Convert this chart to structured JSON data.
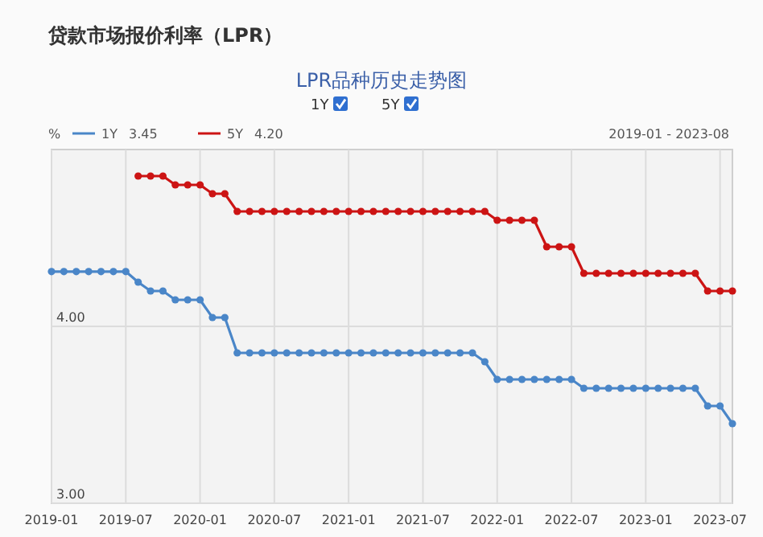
{
  "chart_data": {
    "type": "line",
    "title": "贷款市场报价利率（LPR）",
    "subtitle": "LPR品种历史走势图",
    "ylabel": "%",
    "annotations": [
      "3.45",
      "4.20",
      "2019-01 - 2023-08"
    ],
    "x": [
      "2019-01",
      "2019-02",
      "2019-03",
      "2019-04",
      "2019-05",
      "2019-06",
      "2019-07",
      "2019-08",
      "2019-09",
      "2019-10",
      "2019-11",
      "2019-12",
      "2020-01",
      "2020-02",
      "2020-03",
      "2020-04",
      "2020-05",
      "2020-06",
      "2020-07",
      "2020-08",
      "2020-09",
      "2020-10",
      "2020-11",
      "2020-12",
      "2021-01",
      "2021-02",
      "2021-03",
      "2021-04",
      "2021-05",
      "2021-06",
      "2021-07",
      "2021-08",
      "2021-09",
      "2021-10",
      "2021-11",
      "2021-12",
      "2022-01",
      "2022-02",
      "2022-03",
      "2022-04",
      "2022-05",
      "2022-06",
      "2022-07",
      "2022-08",
      "2022-09",
      "2022-10",
      "2022-11",
      "2022-12",
      "2023-01",
      "2023-02",
      "2023-03",
      "2023-04",
      "2023-05",
      "2023-06",
      "2023-07",
      "2023-08"
    ],
    "series": [
      {
        "name": "1Y",
        "color": "#4a86c8",
        "values": [
          4.31,
          4.31,
          4.31,
          4.31,
          4.31,
          4.31,
          4.31,
          4.25,
          4.2,
          4.2,
          4.15,
          4.15,
          4.15,
          4.05,
          4.05,
          3.85,
          3.85,
          3.85,
          3.85,
          3.85,
          3.85,
          3.85,
          3.85,
          3.85,
          3.85,
          3.85,
          3.85,
          3.85,
          3.85,
          3.85,
          3.85,
          3.85,
          3.85,
          3.85,
          3.85,
          3.8,
          3.7,
          3.7,
          3.7,
          3.7,
          3.7,
          3.7,
          3.7,
          3.65,
          3.65,
          3.65,
          3.65,
          3.65,
          3.65,
          3.65,
          3.65,
          3.65,
          3.65,
          3.55,
          3.55,
          3.45
        ]
      },
      {
        "name": "5Y",
        "color": "#cc1414",
        "values": [
          null,
          null,
          null,
          null,
          null,
          null,
          null,
          4.85,
          4.85,
          4.85,
          4.8,
          4.8,
          4.8,
          4.75,
          4.75,
          4.65,
          4.65,
          4.65,
          4.65,
          4.65,
          4.65,
          4.65,
          4.65,
          4.65,
          4.65,
          4.65,
          4.65,
          4.65,
          4.65,
          4.65,
          4.65,
          4.65,
          4.65,
          4.65,
          4.65,
          4.65,
          4.6,
          4.6,
          4.6,
          4.6,
          4.45,
          4.45,
          4.45,
          4.3,
          4.3,
          4.3,
          4.3,
          4.3,
          4.3,
          4.3,
          4.3,
          4.3,
          4.3,
          4.2,
          4.2,
          4.2
        ]
      }
    ],
    "xlim": [
      "2019-01",
      "2023-08"
    ],
    "xticks": [
      "2019-01",
      "2019-07",
      "2020-01",
      "2020-07",
      "2021-01",
      "2021-07",
      "2022-01",
      "2022-07",
      "2023-01",
      "2023-07"
    ],
    "ylim": [
      3,
      5
    ],
    "yticks": [
      {
        "value": 3,
        "label": "3.00"
      },
      {
        "value": 4,
        "label": "4.00"
      }
    ],
    "grid": true,
    "legend": "top left",
    "marker": "circle",
    "line_style": "solid"
  }
}
